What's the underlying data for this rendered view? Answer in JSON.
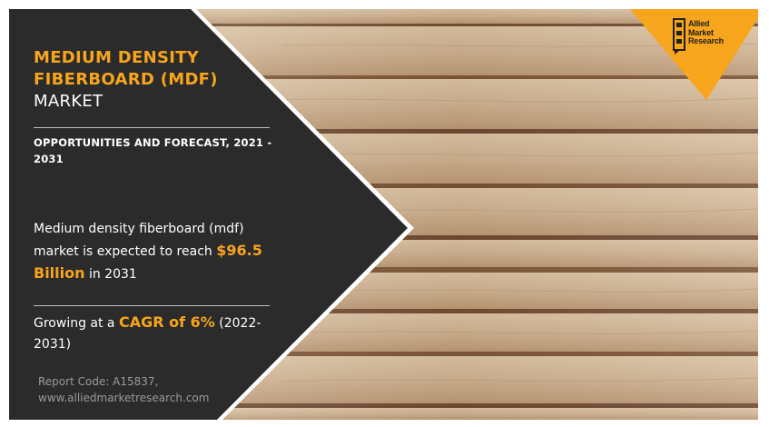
{
  "title": {
    "line1": "MEDIUM DENSITY",
    "line2": "FIBERBOARD (MDF)",
    "line3": "MARKET"
  },
  "subtitle": "OPPORTUNITIES AND FORECAST, 2021 - 2031",
  "stat_reach": {
    "prefix": "Medium density fiberboard (mdf) market is expected to reach ",
    "highlight": "$96.5 Billion",
    "suffix": " in 2031"
  },
  "stat_growth": {
    "prefix": "Growing at a ",
    "highlight": "CAGR of 6%",
    "suffix": " (2022-2031)"
  },
  "footer": {
    "report_code": "Report Code: A15837,",
    "website": "www.alliedmarketresearch.com"
  },
  "logo": {
    "line1": "Allied",
    "line2": "Market",
    "line3": "Research"
  },
  "colors": {
    "accent": "#f7a51d",
    "panel": "#2b2b2b",
    "text": "#ffffff",
    "footer_text": "#9a9a9a"
  },
  "icons": [
    "allied-market-research-logo-icon"
  ]
}
